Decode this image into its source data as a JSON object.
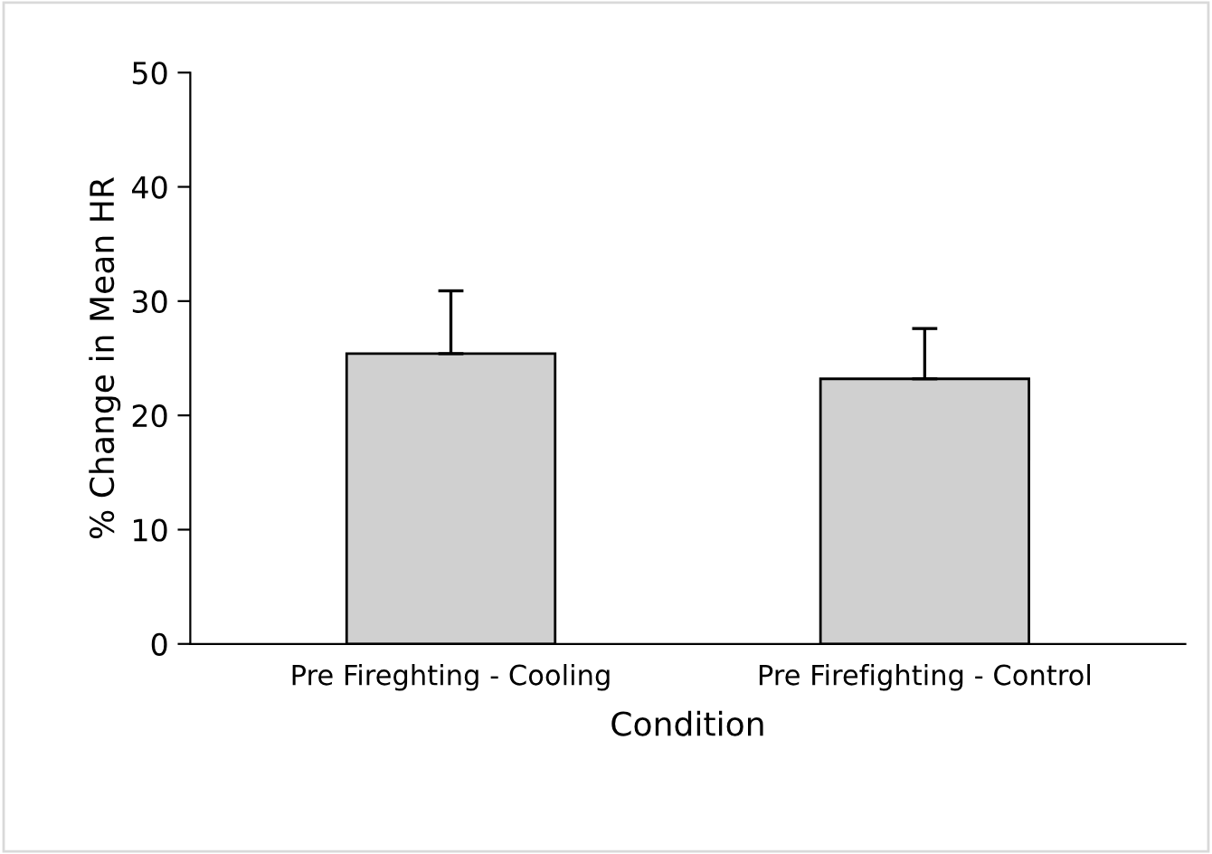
{
  "chart_data": {
    "type": "bar",
    "xlabel": "Condition",
    "ylabel": "% Change in Mean HR",
    "categories": [
      "Pre Fireghting - Cooling",
      "Pre Firefighting - Control"
    ],
    "values": [
      25.4,
      23.2
    ],
    "errors": [
      [
        25.4,
        30.9
      ],
      [
        23.2,
        27.6
      ]
    ],
    "color": "#d0d0d0",
    "ylim": [
      0,
      50
    ],
    "yticks": [
      0,
      10,
      20,
      30,
      40,
      50
    ],
    "grid": false
  }
}
